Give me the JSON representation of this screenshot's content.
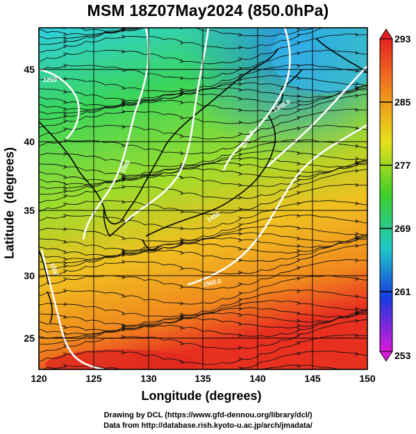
{
  "title": "MSM 18Z07May2024 (850.0hPa)",
  "map": {
    "x_label": "Longitude (degrees)",
    "y_label": "Latitude  (degrees)",
    "x_ticks": [
      "120",
      "125",
      "130",
      "135",
      "140",
      "145",
      "150"
    ],
    "y_ticks": [
      "25",
      "30",
      "35",
      "40",
      "45"
    ],
    "contour_labels": [
      "1350.0",
      "1250",
      "1560.0",
      "1450",
      "1500.0",
      "1500",
      "1550"
    ]
  },
  "colorbar": {
    "labels": [
      "293",
      "285",
      "277",
      "269",
      "261",
      "253"
    ],
    "colors": [
      "#e52222",
      "#f08a1e",
      "#e8e01a",
      "#3ccf2a",
      "#1ec8c8",
      "#1a3ae0",
      "#d81ad8"
    ]
  },
  "footer": {
    "line1": "Drawing by DCL (https://www.gfd-dennou.org/library/dcl/)",
    "line2": "Data from http://database.rish.kyoto-u.ac.jp/arch/jmadata/"
  }
}
